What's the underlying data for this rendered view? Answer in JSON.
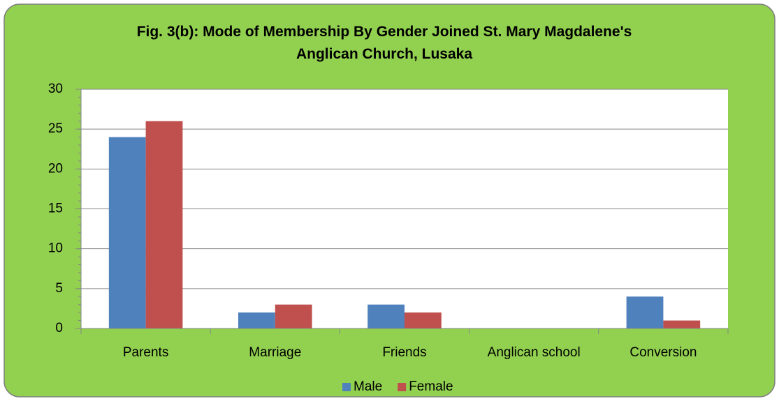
{
  "chart_data": {
    "type": "bar",
    "title": "Fig. 3(b):  Mode of Membership By Gender Joined St. Mary Magdalene's Anglican Church, Lusaka",
    "categories": [
      "Parents",
      "Marriage",
      "Friends",
      "Anglican school",
      "Conversion"
    ],
    "series": [
      {
        "name": "Male",
        "color": "#4f81bd",
        "values": [
          24,
          2,
          3,
          0,
          4
        ]
      },
      {
        "name": "Female",
        "color": "#c0504d",
        "values": [
          26,
          3,
          2,
          0,
          1
        ]
      }
    ],
    "ylim": [
      0,
      30
    ],
    "yticks": [
      0,
      5,
      10,
      15,
      20,
      25,
      30
    ],
    "grid": true,
    "legend": "bottom"
  }
}
